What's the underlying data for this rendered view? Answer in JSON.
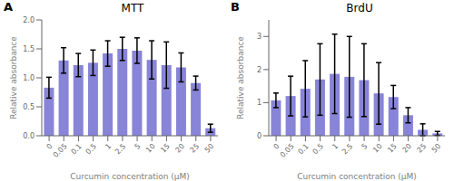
{
  "chart_data": [
    {
      "type": "bar",
      "title": "MTT",
      "annotations": [
        "A"
      ],
      "categories": [
        "0",
        "0.05",
        "0.1",
        "0.5",
        "1",
        "2.5",
        "5",
        "10",
        "15",
        "20",
        "25",
        "50"
      ],
      "values": [
        0.83,
        1.3,
        1.22,
        1.26,
        1.42,
        1.5,
        1.47,
        1.31,
        1.22,
        1.18,
        0.91,
        0.13
      ],
      "errors": [
        0.18,
        0.22,
        0.2,
        0.22,
        0.22,
        0.2,
        0.22,
        0.33,
        0.4,
        0.25,
        0.12,
        0.07
      ],
      "ylabel": "Relative absorbance",
      "xlabel": "Curcumin concentration (μM)",
      "ylim": [
        0,
        2.0
      ],
      "yticks": [
        {
          "value": 0.0,
          "label": "0.0"
        },
        0.5,
        {
          "value": 1.0,
          "label": "1.0"
        },
        1.5,
        {
          "value": 2.0,
          "label": "2.0"
        }
      ],
      "color": "#8884d8",
      "grid": false
    },
    {
      "type": "bar",
      "title": "BrdU",
      "annotations": [
        "B"
      ],
      "categories": [
        "0",
        "0.05",
        "0.1",
        "0.5",
        "1",
        "2.5",
        "5",
        "10",
        "15",
        "20",
        "25",
        "50"
      ],
      "values": [
        1.07,
        1.2,
        1.42,
        1.7,
        1.87,
        1.78,
        1.68,
        1.28,
        1.17,
        0.62,
        0.18,
        0.07
      ],
      "errors": [
        0.22,
        0.6,
        0.85,
        1.08,
        1.2,
        1.22,
        1.1,
        0.93,
        0.35,
        0.23,
        0.18,
        0.06
      ],
      "ylabel": "Relative absorbance",
      "xlabel": "Curcumin concentration (μM)",
      "ylim": [
        0,
        3.5
      ],
      "yticks": [
        0,
        1,
        2,
        3
      ],
      "color": "#8884d8",
      "grid": false
    }
  ]
}
